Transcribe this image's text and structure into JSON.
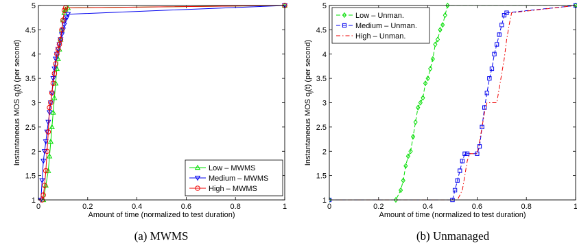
{
  "chart_data": [
    {
      "type": "line",
      "caption": "(a)  MWMS",
      "xlabel": "Amount of time (normalized to test duration)",
      "ylabel": "Instantaneous MOS q_j(t) (per second)",
      "xlim": [
        0,
        1
      ],
      "ylim": [
        1,
        5
      ],
      "xticks": [
        "0",
        "0.2",
        "0.4",
        "0.6",
        "0.8",
        "1"
      ],
      "yticks": [
        "1",
        "1.5",
        "2",
        "2.5",
        "3",
        "3.5",
        "4",
        "4.5",
        "5"
      ],
      "legend_position": "bottom-right",
      "series": [
        {
          "name": "Low – MWMS",
          "color": "#00dd00",
          "marker": "triangle-up",
          "dash": "solid",
          "x": [
            0.02,
            0.03,
            0.04,
            0.045,
            0.05,
            0.055,
            0.06,
            0.065,
            0.07,
            0.075,
            0.08,
            0.085,
            0.09,
            0.095,
            0.1,
            0.105,
            0.11,
            0.12,
            1.0
          ],
          "y": [
            1.0,
            1.3,
            1.6,
            1.9,
            2.2,
            2.5,
            2.8,
            3.1,
            3.4,
            3.7,
            3.9,
            4.1,
            4.3,
            4.5,
            4.7,
            4.85,
            4.92,
            4.95,
            5.0
          ]
        },
        {
          "name": "Medium – MWMS",
          "color": "#0000ee",
          "marker": "triangle-down",
          "dash": "solid",
          "x": [
            0.01,
            0.015,
            0.02,
            0.025,
            0.03,
            0.035,
            0.04,
            0.045,
            0.05,
            0.055,
            0.06,
            0.065,
            0.07,
            0.075,
            0.08,
            0.085,
            0.09,
            0.095,
            0.1,
            0.105,
            0.11,
            0.115,
            0.12,
            1.0
          ],
          "y": [
            1.0,
            1.4,
            1.8,
            2.0,
            2.2,
            2.4,
            2.6,
            2.8,
            3.0,
            3.2,
            3.5,
            3.7,
            3.9,
            4.0,
            4.1,
            4.2,
            4.3,
            4.4,
            4.5,
            4.6,
            4.7,
            4.75,
            4.82,
            5.0
          ]
        },
        {
          "name": "High – MWMS",
          "color": "#ee0000",
          "marker": "circle",
          "dash": "solid",
          "x": [
            0.015,
            0.02,
            0.025,
            0.03,
            0.035,
            0.04,
            0.045,
            0.05,
            0.055,
            0.06,
            0.065,
            0.07,
            0.075,
            0.08,
            0.085,
            0.09,
            0.095,
            0.1,
            0.105,
            0.11,
            1.0
          ],
          "y": [
            1.0,
            1.1,
            1.3,
            1.6,
            2.0,
            2.4,
            2.9,
            3.0,
            3.2,
            3.4,
            3.6,
            3.8,
            4.0,
            4.1,
            4.2,
            4.3,
            4.5,
            4.7,
            4.9,
            4.95,
            5.0
          ]
        }
      ]
    },
    {
      "type": "line",
      "caption": "(b)  Unmanaged",
      "xlabel": "Amount of time (normalized to test duration)",
      "ylabel": "Instantaneous MOS q_j(t) (per second)",
      "xlim": [
        0,
        1
      ],
      "ylim": [
        1,
        5
      ],
      "xticks": [
        "0",
        "0.2",
        "0.4",
        "0.6",
        "0.8",
        "1"
      ],
      "yticks": [
        "1",
        "1.5",
        "2",
        "2.5",
        "3",
        "3.5",
        "4",
        "4.5",
        "5"
      ],
      "legend_position": "top-left",
      "series": [
        {
          "name": "Low – Unman.",
          "color": "#00dd00",
          "marker": "diamond",
          "dash": "dashed",
          "x": [
            0.0,
            0.27,
            0.29,
            0.3,
            0.31,
            0.32,
            0.33,
            0.34,
            0.35,
            0.36,
            0.37,
            0.38,
            0.39,
            0.4,
            0.41,
            0.42,
            0.43,
            0.44,
            0.45,
            0.46,
            0.47,
            0.48,
            1.0
          ],
          "y": [
            1.0,
            1.0,
            1.2,
            1.4,
            1.7,
            1.9,
            2.0,
            2.3,
            2.6,
            2.9,
            3.0,
            3.1,
            3.4,
            3.5,
            3.7,
            3.9,
            4.2,
            4.3,
            4.5,
            4.6,
            4.8,
            5.0,
            5.0
          ]
        },
        {
          "name": "Medium – Unman.",
          "color": "#0000ee",
          "marker": "square",
          "dash": "dashed",
          "x": [
            0.0,
            0.5,
            0.51,
            0.52,
            0.53,
            0.54,
            0.55,
            0.56,
            0.6,
            0.61,
            0.62,
            0.63,
            0.64,
            0.65,
            0.66,
            0.67,
            0.68,
            0.69,
            0.7,
            0.71,
            0.72,
            1.0
          ],
          "y": [
            1.0,
            1.0,
            1.2,
            1.4,
            1.6,
            1.8,
            1.95,
            1.95,
            1.95,
            2.1,
            2.5,
            2.9,
            3.2,
            3.5,
            3.7,
            4.0,
            4.2,
            4.4,
            4.6,
            4.8,
            4.85,
            5.0
          ]
        },
        {
          "name": "High – Unman.",
          "color": "#ee0000",
          "marker": "none",
          "dash": "dashdot",
          "x": [
            0.0,
            0.52,
            0.54,
            0.55,
            0.56,
            0.57,
            0.6,
            0.61,
            0.62,
            0.63,
            0.64,
            0.65,
            0.66,
            0.68,
            0.69,
            0.7,
            0.71,
            0.72,
            0.73,
            0.74,
            1.0
          ],
          "y": [
            1.0,
            1.0,
            1.2,
            1.5,
            1.8,
            1.95,
            1.95,
            2.2,
            2.5,
            2.8,
            3.0,
            3.0,
            3.0,
            3.0,
            3.3,
            3.6,
            3.9,
            4.3,
            4.6,
            4.85,
            5.0
          ]
        }
      ]
    }
  ]
}
